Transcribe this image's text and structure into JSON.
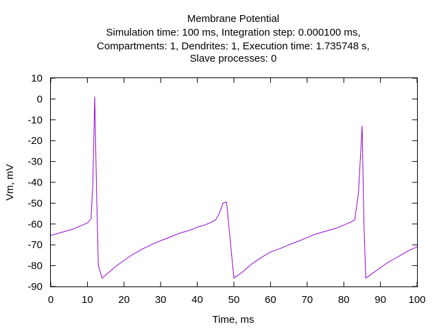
{
  "chart_data": {
    "type": "line",
    "title_lines": [
      "Membrane Potential",
      "Simulation time: 100 ms, Integration step: 0.000100 ms,",
      "Compartments: 1, Dendrites: 1, Execution time: 1.735748 s,",
      "Slave processes: 0"
    ],
    "xlabel": "Time, ms",
    "ylabel": "Vm, mV",
    "xlim": [
      0,
      100
    ],
    "ylim": [
      -90,
      10
    ],
    "xticks": [
      0,
      10,
      20,
      30,
      40,
      50,
      60,
      70,
      80,
      90,
      100
    ],
    "yticks": [
      10,
      0,
      -10,
      -20,
      -30,
      -40,
      -50,
      -60,
      -70,
      -80,
      -90
    ],
    "grid": false,
    "line_color": "#9400d3",
    "series": [
      {
        "x": [
          0,
          2,
          4,
          6,
          8,
          10,
          11,
          11.5,
          12,
          12.5,
          13,
          14,
          16,
          18,
          20,
          22,
          25,
          28,
          30,
          33,
          35,
          38,
          40,
          42,
          44,
          45,
          46,
          47,
          48,
          49,
          50,
          52,
          55,
          58,
          60,
          63,
          65,
          68,
          70,
          72,
          75,
          78,
          80,
          82,
          83,
          84,
          85,
          85.5,
          86,
          88,
          90,
          92,
          94,
          96,
          98,
          100
        ],
        "y": [
          -65.5,
          -64.5,
          -63.5,
          -62.5,
          -61,
          -59.5,
          -57.5,
          -40,
          1,
          -45,
          -80,
          -86,
          -83,
          -80,
          -77.5,
          -75,
          -72,
          -69.5,
          -68,
          -66,
          -64.5,
          -63,
          -61.5,
          -60.5,
          -59,
          -58,
          -55,
          -50,
          -49.5,
          -68,
          -86,
          -83.5,
          -79,
          -75.5,
          -73.5,
          -71.5,
          -70,
          -68,
          -66.5,
          -65,
          -63.5,
          -62,
          -60.5,
          -59,
          -58,
          -45,
          -13,
          -60,
          -86,
          -83.5,
          -81,
          -78.5,
          -76.5,
          -74.5,
          -72.5,
          -71
        ]
      }
    ]
  }
}
